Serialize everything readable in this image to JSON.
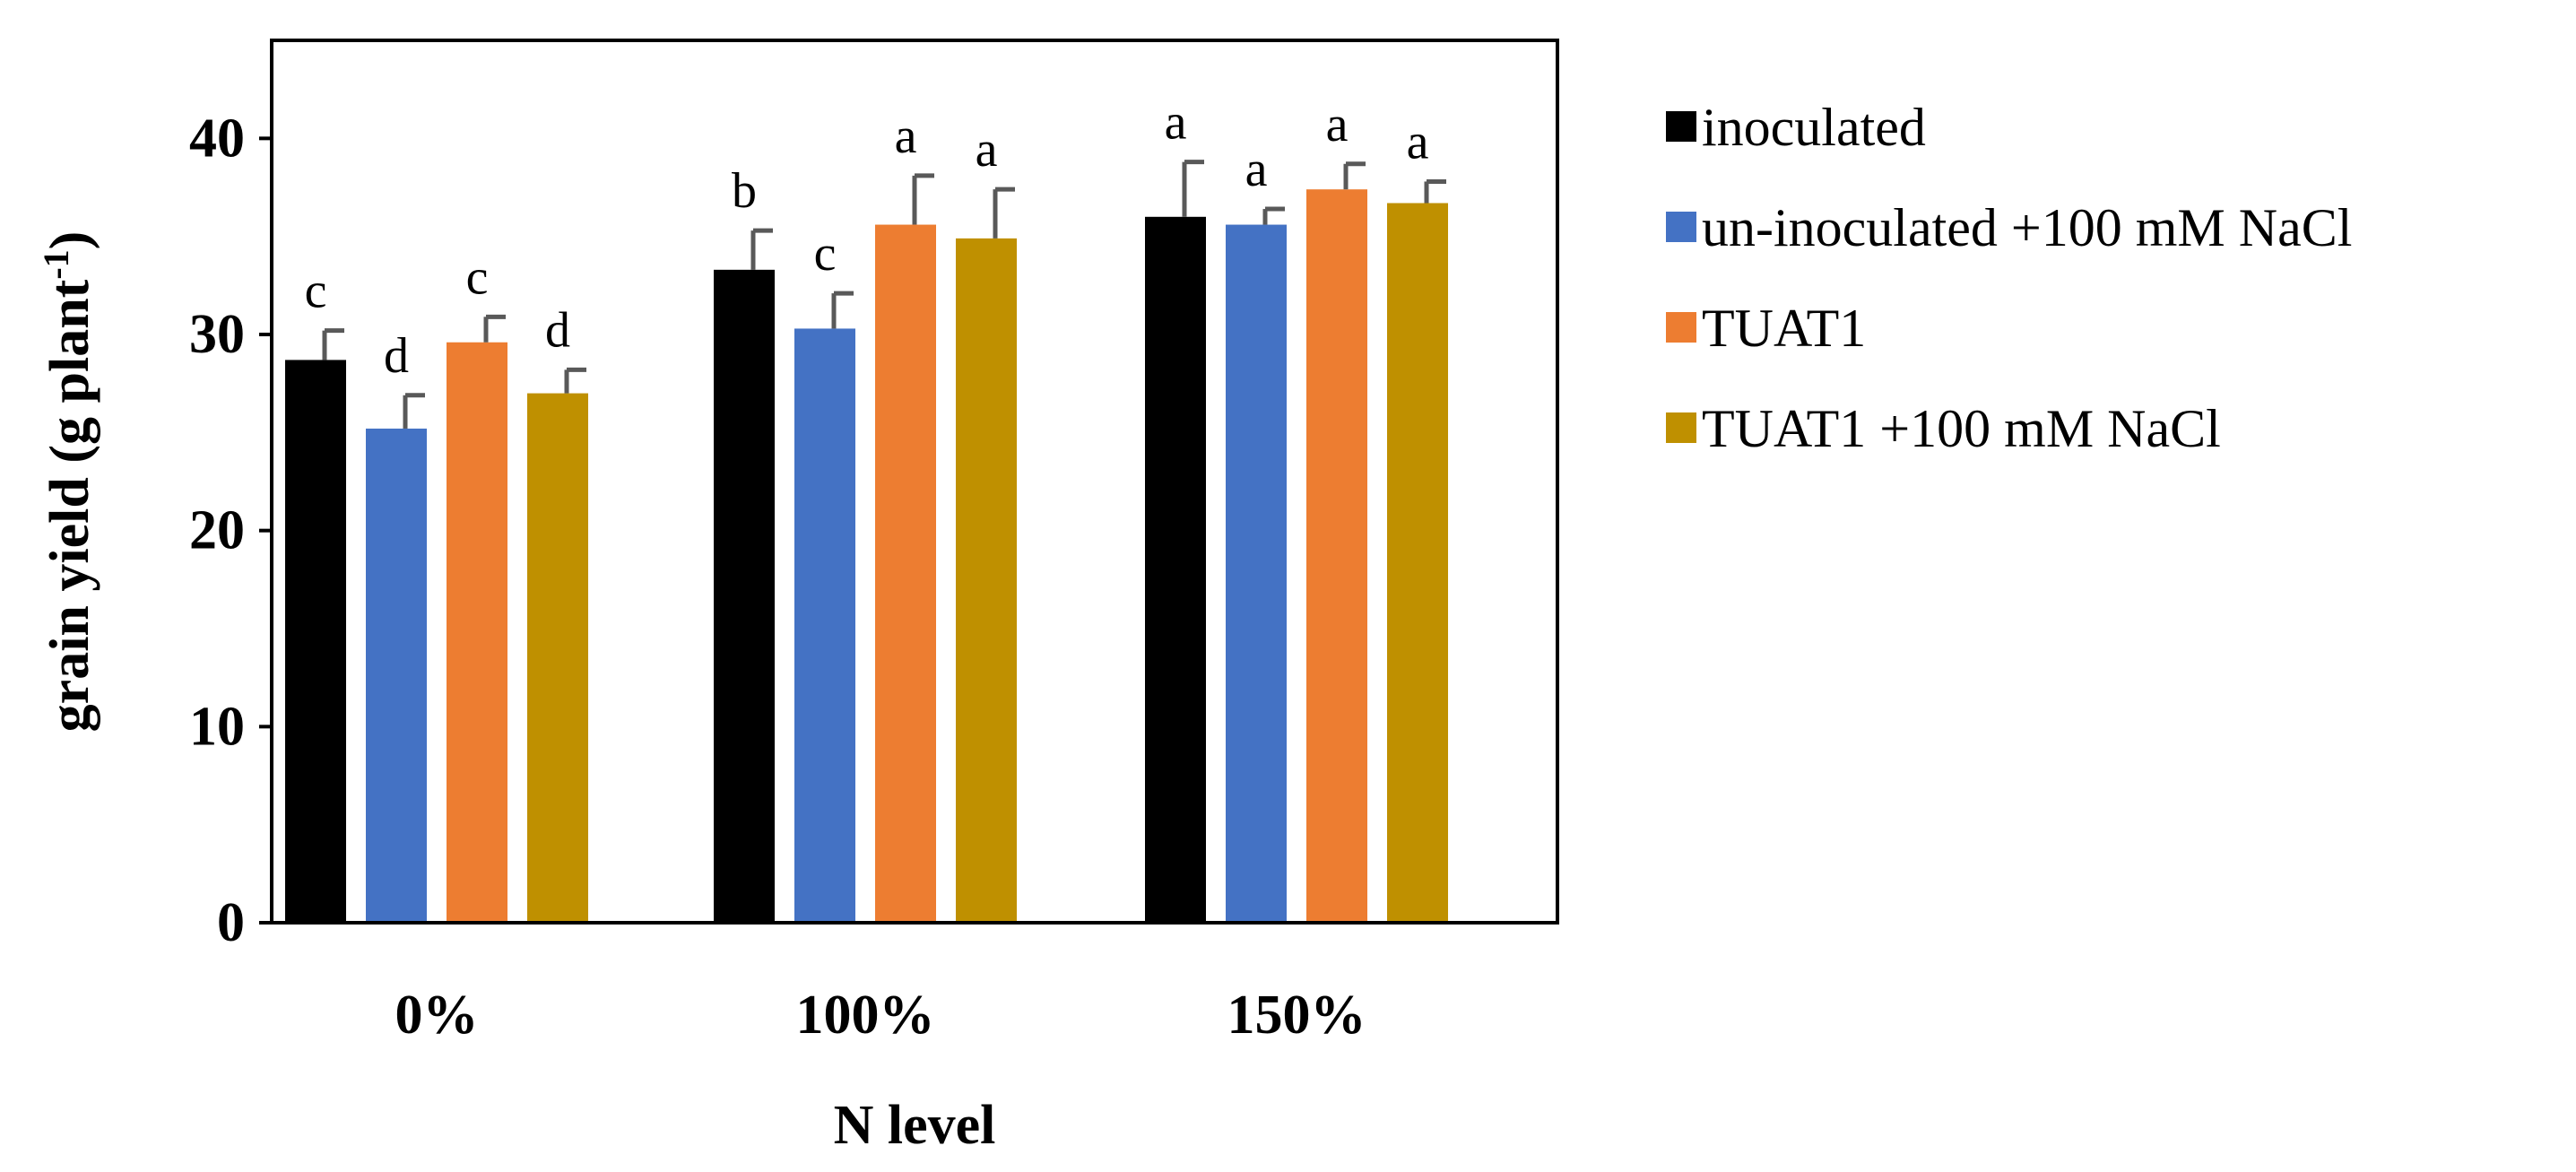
{
  "chart_data": {
    "type": "bar",
    "title": "",
    "xlabel": "N level",
    "ylabel": "grain yield (g plant",
    "ylabel_superscript": "-1",
    "ylabel_close": ")",
    "ylim": [
      0,
      45
    ],
    "yticks": [
      0,
      10,
      20,
      30,
      40
    ],
    "grid": false,
    "legend_position": "right",
    "categories": [
      "0%",
      "100%",
      "150%"
    ],
    "series": [
      {
        "name": "inoculated",
        "color": "#000000",
        "values": [
          28.7,
          33.3,
          36.0
        ],
        "errors": [
          1.5,
          2.0,
          2.8
        ],
        "labels": [
          "c",
          "b",
          "a"
        ]
      },
      {
        "name": "un-inoculated +100 mM NaCl",
        "color": "#4472C4",
        "values": [
          25.2,
          30.3,
          35.6
        ],
        "errors": [
          1.7,
          1.8,
          0.8
        ],
        "labels": [
          "d",
          "c",
          "a"
        ]
      },
      {
        "name": "TUAT1",
        "color": "#ED7D31",
        "values": [
          29.6,
          35.6,
          37.4
        ],
        "errors": [
          1.3,
          2.5,
          1.3
        ],
        "labels": [
          "c",
          "a",
          "a"
        ]
      },
      {
        "name": "TUAT1 +100 mM NaCl",
        "color": "#BF9000",
        "values": [
          27.0,
          34.9,
          36.7
        ],
        "errors": [
          1.2,
          2.5,
          1.1
        ],
        "labels": [
          "d",
          "a",
          "a"
        ]
      }
    ]
  }
}
